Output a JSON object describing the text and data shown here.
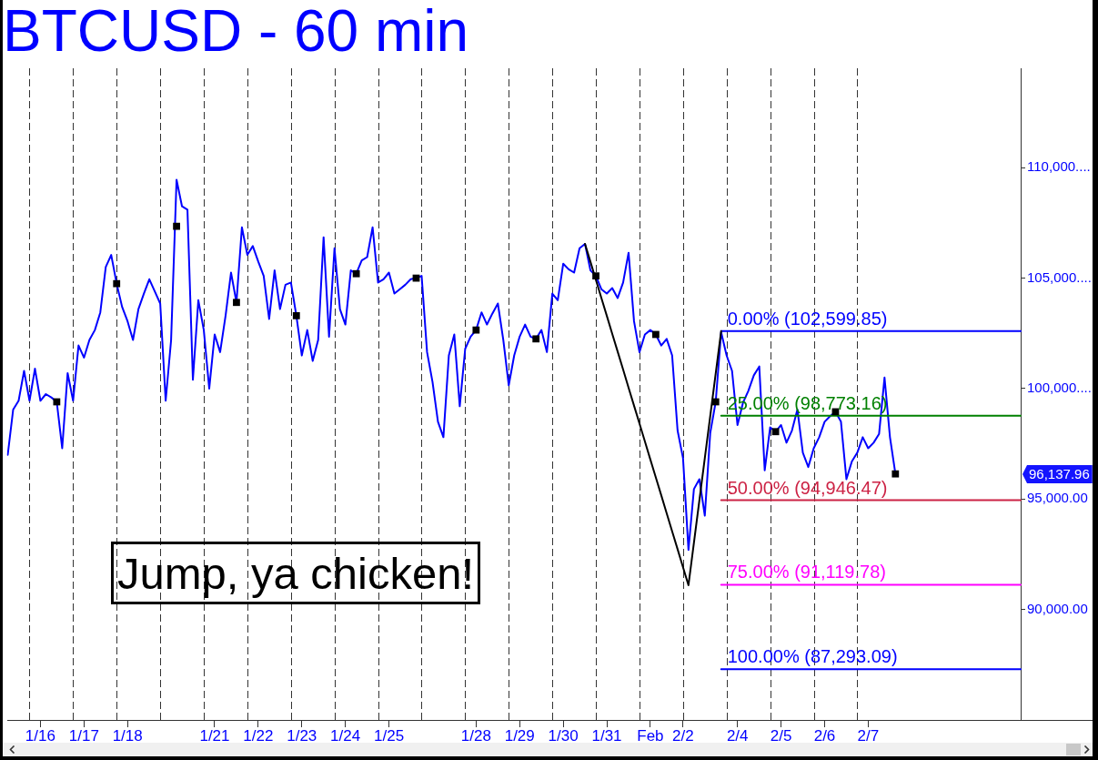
{
  "chart_data": {
    "type": "line",
    "title": "BTCUSD - 60 min",
    "categories": [
      null,
      null,
      null,
      null,
      null,
      null,
      "1/16",
      null,
      null,
      null,
      null,
      null,
      null,
      null,
      "1/17",
      null,
      null,
      null,
      null,
      null,
      null,
      null,
      "1/18",
      null,
      null,
      null,
      null,
      null,
      null,
      null,
      null,
      null,
      null,
      null,
      null,
      null,
      null,
      null,
      "1/21",
      null,
      null,
      null,
      null,
      null,
      null,
      null,
      "1/22",
      null,
      null,
      null,
      null,
      null,
      null,
      null,
      "1/23",
      null,
      null,
      null,
      null,
      null,
      null,
      null,
      "1/24",
      null,
      null,
      null,
      null,
      null,
      null,
      null,
      "1/25",
      null,
      null,
      null,
      null,
      null,
      null,
      null,
      null,
      null,
      null,
      null,
      null,
      null,
      null,
      null,
      "1/28",
      null,
      null,
      null,
      null,
      null,
      null,
      null,
      "1/29",
      null,
      null,
      null,
      null,
      null,
      null,
      null,
      "1/30",
      null,
      null,
      null,
      null,
      null,
      null,
      null,
      "1/31",
      null,
      null,
      null,
      null,
      null,
      null,
      null,
      "Feb",
      null,
      null,
      null,
      null,
      null,
      "2/2",
      null,
      null,
      null,
      null,
      null,
      null,
      null,
      null,
      null,
      "2/4",
      null,
      null,
      null,
      null,
      null,
      null,
      null,
      "2/5",
      null,
      null,
      null,
      null,
      null,
      null,
      null,
      "2/6",
      null,
      null,
      null,
      null,
      null,
      null,
      null,
      "2/7",
      null,
      null,
      null,
      null,
      null,
      null,
      null,
      null,
      null,
      null,
      null,
      null,
      null,
      null,
      null,
      null,
      null,
      null,
      null,
      null,
      null,
      null,
      null,
      null,
      null,
      null,
      null,
      null
    ],
    "ylim": [
      85000,
      114500
    ],
    "yticks": [
      {
        "value": 90000,
        "label": "90,000.00"
      },
      {
        "value": 95000,
        "label": "95,000.00"
      },
      {
        "value": 100000,
        "label": "100,000...."
      },
      {
        "value": 105000,
        "label": "105,000...."
      },
      {
        "value": 110000,
        "label": "110,000...."
      }
    ],
    "annotations": [
      "Jump, ya chicken!",
      "96,137.96"
    ],
    "series": [
      {
        "color": "#0000ff",
        "values": [
          97000,
          99050,
          99450,
          100800,
          99450,
          100900,
          99450,
          99750,
          99600,
          99400,
          97300,
          100700,
          99450,
          101950,
          101400,
          102200,
          102650,
          103450,
          105500,
          106050,
          104750,
          103700,
          103050,
          102200,
          103600,
          104300,
          104950,
          104400,
          103850,
          99450,
          102200,
          109450,
          108250,
          108100,
          100400,
          104000,
          102650,
          100000,
          102450,
          101650,
          103300,
          105250,
          103900,
          107300,
          106050,
          106450,
          105750,
          105100,
          103150,
          105350,
          103600,
          104700,
          104800,
          103300,
          101500,
          102650,
          101250,
          102200,
          106850,
          102350,
          106350,
          103600,
          102900,
          105350,
          105200,
          105800,
          105950,
          107300,
          104800,
          104950,
          105250,
          104300,
          104500,
          104700,
          104950,
          105000,
          105100,
          101650,
          100300,
          98500,
          97800,
          101500,
          102450,
          99200,
          101800,
          102350,
          102650,
          103450,
          102900,
          103400,
          103850,
          102200,
          100150,
          101500,
          102350,
          102900,
          102350,
          102250,
          102650,
          101650,
          104300,
          104000,
          105650,
          105400,
          105250,
          106350,
          106550,
          105350,
          105100,
          104500,
          104300,
          104550,
          104100,
          104800,
          106150,
          103050,
          101650,
          102450,
          102650,
          102450,
          101950,
          102250,
          101500,
          98100,
          96850,
          92700,
          95450,
          95900,
          94250,
          98000,
          99400,
          102550,
          101500,
          100800,
          98350,
          99350,
          99900,
          100600,
          101000,
          96300,
          98250,
          98050,
          98350,
          97550,
          98100,
          99050,
          97100,
          96450,
          97300,
          97800,
          98500,
          98750,
          98950,
          98500,
          95900,
          96700,
          97100,
          97800,
          97300,
          97550,
          97950,
          100500,
          97800,
          96137.96,
          null,
          null,
          null,
          null,
          null,
          null,
          null,
          null,
          null,
          null,
          null,
          null,
          null,
          null,
          null,
          null,
          null,
          null,
          null,
          null,
          null,
          null,
          null
        ]
      },
      {
        "type": "line",
        "name": "0.00% (102,599.85)",
        "color": "#0000ff",
        "values": [
          null,
          null,
          null,
          null,
          null,
          null,
          null,
          null,
          null,
          null,
          null,
          null,
          null,
          null,
          null,
          null,
          null,
          null,
          null,
          null,
          null,
          null,
          null,
          null,
          null,
          null,
          null,
          null,
          null,
          null,
          null,
          null,
          null,
          null,
          null,
          null,
          null,
          null,
          null,
          null,
          null,
          null,
          null,
          null,
          null,
          null,
          null,
          null,
          null,
          null,
          null,
          null,
          null,
          null,
          null,
          null,
          null,
          null,
          null,
          null,
          null,
          null,
          null,
          null,
          null,
          null,
          null,
          null,
          null,
          null,
          null,
          null,
          null,
          null,
          null,
          null,
          null,
          null,
          null,
          null,
          null,
          null,
          null,
          null,
          null,
          null,
          null,
          null,
          null,
          null,
          null,
          null,
          null,
          null,
          null,
          null,
          null,
          null,
          null,
          null,
          null,
          null,
          null,
          null,
          null,
          null,
          null,
          null,
          null,
          null,
          null,
          null,
          null,
          null,
          null,
          null,
          null,
          null,
          null,
          null,
          null,
          null,
          null,
          null,
          null,
          null,
          null,
          null,
          null,
          null,
          null,
          102599.85,
          102599.85,
          102599.85,
          102599.85,
          102599.85,
          102599.85,
          102599.85,
          102599.85,
          102599.85,
          102599.85,
          102599.85,
          102599.85,
          102599.85,
          102599.85,
          102599.85,
          102599.85,
          102599.85,
          102599.85,
          102599.85,
          102599.85,
          102599.85,
          102599.85,
          102599.85,
          102599.85,
          102599.85,
          102599.85,
          102599.85,
          102599.85,
          102599.85,
          102599.85,
          102599.85,
          102599.85,
          102599.85,
          102599.85,
          102599.85,
          102599.85,
          102599.85,
          102599.85,
          102599.85,
          102599.85,
          102599.85,
          102599.85,
          102599.85,
          102599.85,
          102599.85,
          102599.85,
          102599.85,
          102599.85,
          102599.85,
          102599.85,
          102599.85,
          102599.85,
          102599.85,
          102599.85,
          102599.85,
          102599.85
        ]
      },
      {
        "type": "line",
        "name": "25.00% (98,773.16)",
        "color": "#008000",
        "values": [
          null,
          null,
          null,
          null,
          null,
          null,
          null,
          null,
          null,
          null,
          null,
          null,
          null,
          null,
          null,
          null,
          null,
          null,
          null,
          null,
          null,
          null,
          null,
          null,
          null,
          null,
          null,
          null,
          null,
          null,
          null,
          null,
          null,
          null,
          null,
          null,
          null,
          null,
          null,
          null,
          null,
          null,
          null,
          null,
          null,
          null,
          null,
          null,
          null,
          null,
          null,
          null,
          null,
          null,
          null,
          null,
          null,
          null,
          null,
          null,
          null,
          null,
          null,
          null,
          null,
          null,
          null,
          null,
          null,
          null,
          null,
          null,
          null,
          null,
          null,
          null,
          null,
          null,
          null,
          null,
          null,
          null,
          null,
          null,
          null,
          null,
          null,
          null,
          null,
          null,
          null,
          null,
          null,
          null,
          null,
          null,
          null,
          null,
          null,
          null,
          null,
          null,
          null,
          null,
          null,
          null,
          null,
          null,
          null,
          null,
          null,
          null,
          null,
          null,
          null,
          null,
          null,
          null,
          null,
          null,
          null,
          null,
          null,
          null,
          null,
          null,
          null,
          null,
          null,
          null,
          null,
          98773.16,
          98773.16,
          98773.16,
          98773.16,
          98773.16,
          98773.16,
          98773.16,
          98773.16,
          98773.16,
          98773.16,
          98773.16,
          98773.16,
          98773.16,
          98773.16,
          98773.16,
          98773.16,
          98773.16,
          98773.16,
          98773.16,
          98773.16,
          98773.16,
          98773.16,
          98773.16,
          98773.16,
          98773.16,
          98773.16,
          98773.16,
          98773.16,
          98773.16,
          98773.16,
          98773.16,
          98773.16,
          98773.16,
          98773.16,
          98773.16,
          98773.16,
          98773.16,
          98773.16,
          98773.16,
          98773.16,
          98773.16,
          98773.16,
          98773.16,
          98773.16,
          98773.16,
          98773.16,
          98773.16,
          98773.16,
          98773.16,
          98773.16,
          98773.16,
          98773.16,
          98773.16,
          98773.16,
          98773.16,
          98773.16
        ]
      },
      {
        "type": "line",
        "name": "50.00% (94,946.47)",
        "color": "#cc2244",
        "values": [
          null,
          null,
          null,
          null,
          null,
          null,
          null,
          null,
          null,
          null,
          null,
          null,
          null,
          null,
          null,
          null,
          null,
          null,
          null,
          null,
          null,
          null,
          null,
          null,
          null,
          null,
          null,
          null,
          null,
          null,
          null,
          null,
          null,
          null,
          null,
          null,
          null,
          null,
          null,
          null,
          null,
          null,
          null,
          null,
          null,
          null,
          null,
          null,
          null,
          null,
          null,
          null,
          null,
          null,
          null,
          null,
          null,
          null,
          null,
          null,
          null,
          null,
          null,
          null,
          null,
          null,
          null,
          null,
          null,
          null,
          null,
          null,
          null,
          null,
          null,
          null,
          null,
          null,
          null,
          null,
          null,
          null,
          null,
          null,
          null,
          null,
          null,
          null,
          null,
          null,
          null,
          null,
          null,
          null,
          null,
          null,
          null,
          null,
          null,
          null,
          null,
          null,
          null,
          null,
          null,
          null,
          null,
          null,
          null,
          null,
          null,
          null,
          null,
          null,
          null,
          null,
          null,
          null,
          null,
          null,
          null,
          null,
          null,
          null,
          null,
          null,
          null,
          null,
          null,
          null,
          null,
          94946.47,
          94946.47,
          94946.47,
          94946.47,
          94946.47,
          94946.47,
          94946.47,
          94946.47,
          94946.47,
          94946.47,
          94946.47,
          94946.47,
          94946.47,
          94946.47,
          94946.47,
          94946.47,
          94946.47,
          94946.47,
          94946.47,
          94946.47,
          94946.47,
          94946.47,
          94946.47,
          94946.47,
          94946.47,
          94946.47,
          94946.47,
          94946.47,
          94946.47,
          94946.47,
          94946.47,
          94946.47,
          94946.47,
          94946.47,
          94946.47,
          94946.47,
          94946.47,
          94946.47,
          94946.47,
          94946.47,
          94946.47,
          94946.47,
          94946.47,
          94946.47,
          94946.47,
          94946.47,
          94946.47,
          94946.47,
          94946.47,
          94946.47,
          94946.47,
          94946.47,
          94946.47,
          94946.47,
          94946.47,
          94946.47
        ]
      },
      {
        "type": "line",
        "name": "75.00% (91,119.78)",
        "color": "#ff00ff",
        "values": [
          null,
          null,
          null,
          null,
          null,
          null,
          null,
          null,
          null,
          null,
          null,
          null,
          null,
          null,
          null,
          null,
          null,
          null,
          null,
          null,
          null,
          null,
          null,
          null,
          null,
          null,
          null,
          null,
          null,
          null,
          null,
          null,
          null,
          null,
          null,
          null,
          null,
          null,
          null,
          null,
          null,
          null,
          null,
          null,
          null,
          null,
          null,
          null,
          null,
          null,
          null,
          null,
          null,
          null,
          null,
          null,
          null,
          null,
          null,
          null,
          null,
          null,
          null,
          null,
          null,
          null,
          null,
          null,
          null,
          null,
          null,
          null,
          null,
          null,
          null,
          null,
          null,
          null,
          null,
          null,
          null,
          null,
          null,
          null,
          null,
          null,
          null,
          null,
          null,
          null,
          null,
          null,
          null,
          null,
          null,
          null,
          null,
          null,
          null,
          null,
          null,
          null,
          null,
          null,
          null,
          null,
          null,
          null,
          null,
          null,
          null,
          null,
          null,
          null,
          null,
          null,
          null,
          null,
          null,
          null,
          null,
          null,
          null,
          null,
          null,
          null,
          null,
          null,
          null,
          null,
          null,
          91119.78,
          91119.78,
          91119.78,
          91119.78,
          91119.78,
          91119.78,
          91119.78,
          91119.78,
          91119.78,
          91119.78,
          91119.78,
          91119.78,
          91119.78,
          91119.78,
          91119.78,
          91119.78,
          91119.78,
          91119.78,
          91119.78,
          91119.78,
          91119.78,
          91119.78,
          91119.78,
          91119.78,
          91119.78,
          91119.78,
          91119.78,
          91119.78,
          91119.78,
          91119.78,
          91119.78,
          91119.78,
          91119.78,
          91119.78,
          91119.78,
          91119.78,
          91119.78,
          91119.78,
          91119.78,
          91119.78,
          91119.78,
          91119.78,
          91119.78,
          91119.78,
          91119.78,
          91119.78,
          91119.78,
          91119.78,
          91119.78,
          91119.78,
          91119.78,
          91119.78,
          91119.78,
          91119.78,
          91119.78,
          91119.78
        ]
      },
      {
        "type": "line",
        "name": "100.00% (87,293.09)",
        "color": "#0000ff",
        "values": [
          null,
          null,
          null,
          null,
          null,
          null,
          null,
          null,
          null,
          null,
          null,
          null,
          null,
          null,
          null,
          null,
          null,
          null,
          null,
          null,
          null,
          null,
          null,
          null,
          null,
          null,
          null,
          null,
          null,
          null,
          null,
          null,
          null,
          null,
          null,
          null,
          null,
          null,
          null,
          null,
          null,
          null,
          null,
          null,
          null,
          null,
          null,
          null,
          null,
          null,
          null,
          null,
          null,
          null,
          null,
          null,
          null,
          null,
          null,
          null,
          null,
          null,
          null,
          null,
          null,
          null,
          null,
          null,
          null,
          null,
          null,
          null,
          null,
          null,
          null,
          null,
          null,
          null,
          null,
          null,
          null,
          null,
          null,
          null,
          null,
          null,
          null,
          null,
          null,
          null,
          null,
          null,
          null,
          null,
          null,
          null,
          null,
          null,
          null,
          null,
          null,
          null,
          null,
          null,
          null,
          null,
          null,
          null,
          null,
          null,
          null,
          null,
          null,
          null,
          null,
          null,
          null,
          null,
          null,
          null,
          null,
          null,
          null,
          null,
          null,
          null,
          null,
          null,
          null,
          null,
          null,
          87293.09,
          87293.09,
          87293.09,
          87293.09,
          87293.09,
          87293.09,
          87293.09,
          87293.09,
          87293.09,
          87293.09,
          87293.09,
          87293.09,
          87293.09,
          87293.09,
          87293.09,
          87293.09,
          87293.09,
          87293.09,
          87293.09,
          87293.09,
          87293.09,
          87293.09,
          87293.09,
          87293.09,
          87293.09,
          87293.09,
          87293.09,
          87293.09,
          87293.09,
          87293.09,
          87293.09,
          87293.09,
          87293.09,
          87293.09,
          87293.09,
          87293.09,
          87293.09,
          87293.09,
          87293.09,
          87293.09,
          87293.09,
          87293.09,
          87293.09,
          87293.09,
          87293.09,
          87293.09,
          87293.09,
          87293.09,
          87293.09,
          87293.09,
          87293.09,
          87293.09,
          87293.09,
          87293.09,
          87293.09,
          87293.09
        ]
      },
      {
        "type": "line",
        "color": "#000000",
        "values": [
          null,
          null,
          null,
          null,
          null,
          null,
          null,
          null,
          null,
          null,
          null,
          null,
          null,
          null,
          null,
          null,
          null,
          null,
          null,
          null,
          null,
          null,
          null,
          null,
          null,
          null,
          null,
          null,
          null,
          null,
          null,
          null,
          null,
          null,
          null,
          null,
          null,
          null,
          null,
          null,
          null,
          null,
          null,
          null,
          null,
          null,
          null,
          null,
          null,
          null,
          null,
          null,
          null,
          null,
          null,
          null,
          null,
          null,
          null,
          null,
          null,
          null,
          null,
          null,
          null,
          null,
          null,
          null,
          null,
          null,
          null,
          null,
          null,
          null,
          null,
          null,
          null,
          null,
          null,
          null,
          null,
          null,
          null,
          null,
          null,
          null,
          null,
          null,
          null,
          null,
          null,
          null,
          null,
          null,
          null,
          null,
          null,
          null,
          null,
          null,
          null,
          null,
          null,
          null,
          null,
          null,
          106550,
          105740,
          104920,
          104110,
          103300,
          102480,
          101670,
          100860,
          100040,
          99230,
          98420,
          97610,
          96790,
          95980,
          95170,
          94350,
          93540,
          92730,
          91910,
          91100,
          93020,
          94930,
          96850,
          98770,
          100680,
          102600,
          null,
          null,
          null,
          null,
          null,
          null,
          null,
          null,
          null,
          null,
          null,
          null,
          null,
          null,
          null,
          null,
          null,
          null,
          null,
          null,
          null,
          null,
          null,
          null,
          null,
          null,
          null,
          null,
          null,
          null,
          null,
          null,
          null,
          null,
          null,
          null,
          null,
          null,
          null,
          null,
          null,
          null,
          null,
          null,
          null,
          null,
          null,
          null,
          null,
          null,
          null,
          null,
          null,
          null,
          null
        ]
      },
      {
        "type": "scatter",
        "color": "#000000",
        "marker": "square",
        "values": [
          null,
          null,
          null,
          null,
          null,
          null,
          null,
          null,
          null,
          99400,
          null,
          null,
          null,
          null,
          null,
          null,
          null,
          null,
          null,
          null,
          104750,
          null,
          null,
          null,
          null,
          null,
          null,
          null,
          null,
          null,
          null,
          107350,
          null,
          null,
          null,
          null,
          null,
          null,
          null,
          null,
          null,
          null,
          103900,
          null,
          null,
          null,
          null,
          null,
          null,
          null,
          null,
          null,
          null,
          103300,
          null,
          null,
          null,
          null,
          null,
          null,
          null,
          null,
          null,
          null,
          105200,
          null,
          null,
          null,
          null,
          null,
          null,
          null,
          null,
          null,
          null,
          105000,
          null,
          null,
          null,
          null,
          null,
          null,
          null,
          null,
          null,
          null,
          102650,
          null,
          null,
          null,
          null,
          null,
          null,
          null,
          null,
          null,
          null,
          102250,
          null,
          null,
          null,
          null,
          null,
          null,
          null,
          null,
          null,
          null,
          105100,
          null,
          null,
          null,
          null,
          null,
          null,
          null,
          null,
          null,
          null,
          102450,
          null,
          null,
          null,
          null,
          null,
          null,
          null,
          null,
          null,
          null,
          99400,
          null,
          null,
          null,
          null,
          null,
          null,
          null,
          null,
          null,
          null,
          98050,
          null,
          null,
          null,
          null,
          null,
          null,
          null,
          null,
          null,
          null,
          98950,
          null,
          null,
          null,
          null,
          null,
          null,
          null,
          null,
          null,
          null,
          96137.96,
          null,
          null,
          null,
          null,
          null,
          null,
          null,
          null,
          null,
          null,
          null,
          null,
          null,
          null,
          null,
          null,
          null,
          null,
          null,
          null,
          null,
          null,
          null
        ]
      }
    ]
  }
}
